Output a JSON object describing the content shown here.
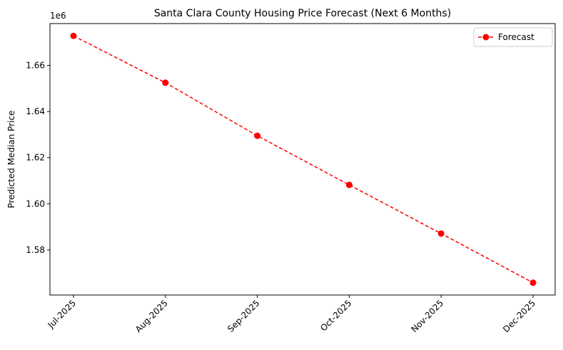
{
  "chart_data": {
    "type": "line",
    "title": "Santa Clara County Housing Price Forecast (Next 6 Months)",
    "xlabel": "",
    "ylabel": "Predicted Median Price",
    "y_offset_label": "1e6",
    "categories": [
      "Jul-2025",
      "Aug-2025",
      "Sep-2025",
      "Oct-2025",
      "Nov-2025",
      "Dec-2025"
    ],
    "series": [
      {
        "name": "Forecast",
        "values": [
          1672800,
          1652500,
          1629500,
          1608200,
          1587100,
          1565800
        ],
        "color": "#ff0000",
        "line_style": "dashed",
        "marker": "circle"
      }
    ],
    "yticks": [
      1.58,
      1.6,
      1.62,
      1.64,
      1.66
    ],
    "ytick_labels": [
      "1.58",
      "1.60",
      "1.62",
      "1.64",
      "1.66"
    ],
    "ylim": [
      1560460,
      1678140
    ],
    "legend_position": "top-right",
    "grid": false
  }
}
